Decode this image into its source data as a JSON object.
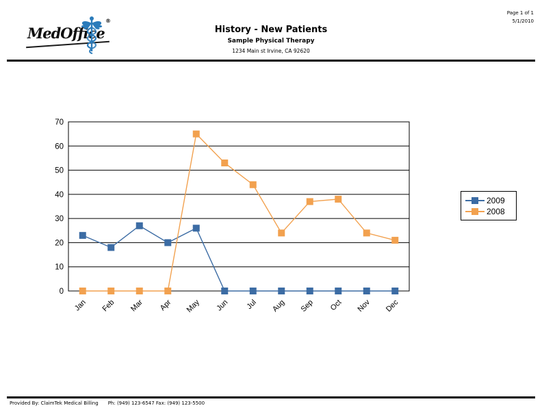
{
  "page": {
    "page_info": "Page 1 of 1",
    "date": "5/1/2010"
  },
  "header": {
    "logo_text": "MedOffice",
    "logo_reg": "®",
    "title": "History - New Patients",
    "subtitle": "Sample Physical Therapy",
    "address": "1234 Main st Irvine, CA  92620"
  },
  "footer": {
    "provided_by": "Provided By: ClaimTek Medical Billing",
    "phone_fax": "Ph: (949) 123-6547 Fax: (949) 123-5500"
  },
  "colors": {
    "series_2009": "#3C6CA4",
    "series_2008": "#F2A14F",
    "caduceus_blue": "#2B7BBA",
    "axis": "#000000"
  },
  "chart_data": {
    "type": "line",
    "title": "History - New Patients",
    "categories": [
      "Jan",
      "Feb",
      "Mar",
      "Apr",
      "May",
      "Jun",
      "Jul",
      "Aug",
      "Sep",
      "Oct",
      "Nov",
      "Dec"
    ],
    "series": [
      {
        "name": "2009",
        "color": "#3C6CA4",
        "values": [
          23,
          18,
          27,
          20,
          26,
          0,
          0,
          0,
          0,
          0,
          0,
          0
        ]
      },
      {
        "name": "2008",
        "color": "#F2A14F",
        "values": [
          0,
          0,
          0,
          0,
          65,
          53,
          44,
          24,
          37,
          38,
          24,
          21
        ]
      }
    ],
    "xlabel": "",
    "ylabel": "",
    "ylim": [
      0,
      70
    ],
    "ytick_step": 10,
    "grid": true,
    "marker": "square",
    "legend_position": "right"
  }
}
